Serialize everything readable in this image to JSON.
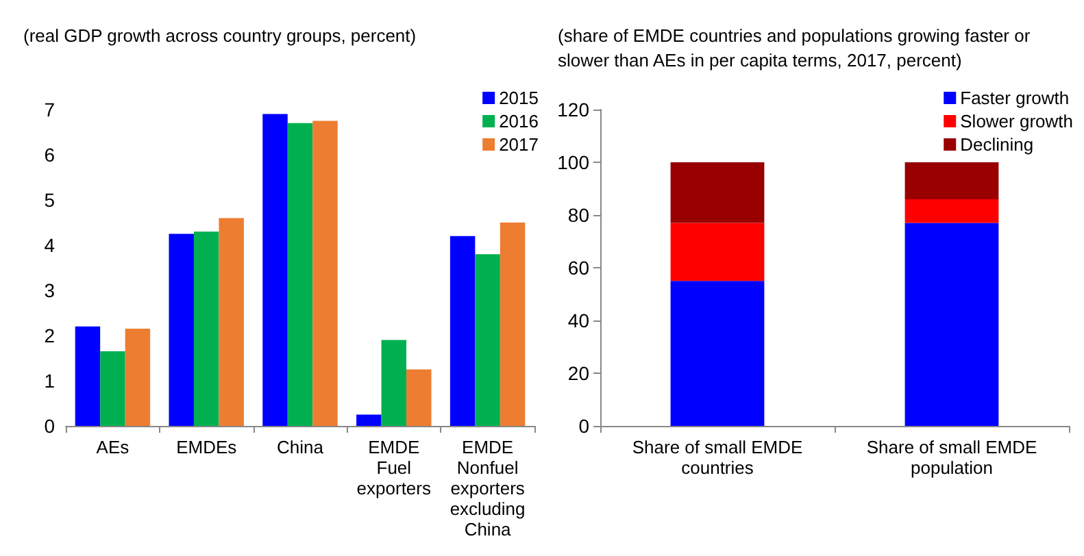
{
  "chart_data": [
    {
      "type": "bar",
      "title": "(real GDP growth across country groups, percent)",
      "categories": [
        "AEs",
        "EMDEs",
        "China",
        "EMDE\nFuel\nexporters",
        "EMDE\nNonfuel\nexporters\nexcluding\nChina"
      ],
      "series": [
        {
          "name": "2015",
          "color": "#0000ff",
          "values": [
            2.2,
            4.25,
            6.9,
            0.25,
            4.2
          ]
        },
        {
          "name": "2016",
          "color": "#00b050",
          "values": [
            1.65,
            4.3,
            6.7,
            1.9,
            3.8
          ]
        },
        {
          "name": "2017",
          "color": "#ed7d31",
          "values": [
            2.15,
            4.6,
            6.75,
            1.25,
            4.5
          ]
        }
      ],
      "ylim": [
        0,
        7
      ],
      "yticks": [
        0,
        1,
        2,
        3,
        4,
        5,
        6,
        7
      ],
      "grid": false,
      "legend": "top right"
    },
    {
      "type": "bar",
      "stacked": true,
      "title": "(share of EMDE countries and populations growing faster or slower than AEs in per capita terms, 2017, percent)",
      "categories": [
        "Share of small EMDE\ncountries",
        "Share of small EMDE\npopulation"
      ],
      "series": [
        {
          "name": "Faster growth",
          "color": "#0000ff",
          "values": [
            55,
            77
          ]
        },
        {
          "name": "Slower growth",
          "color": "#ff0000",
          "values": [
            22,
            9
          ]
        },
        {
          "name": "Declining",
          "color": "#990000",
          "values": [
            23,
            14
          ]
        }
      ],
      "ylim": [
        0,
        120
      ],
      "yticks": [
        0,
        20,
        40,
        60,
        80,
        100,
        120
      ],
      "grid": false,
      "legend": "top right"
    }
  ]
}
